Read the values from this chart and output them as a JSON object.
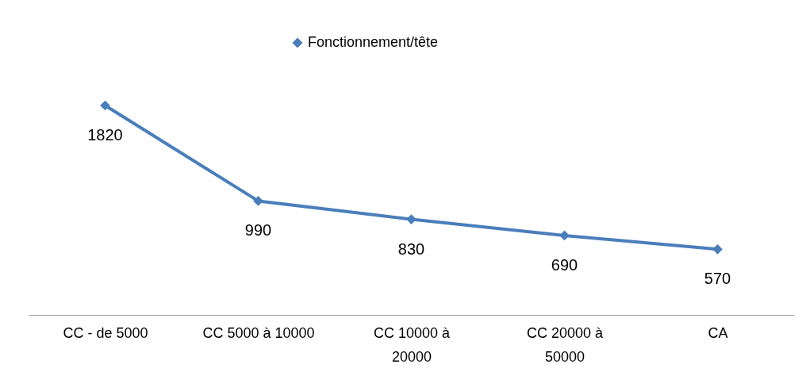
{
  "chart_data": {
    "type": "line",
    "categories": [
      "CC - de 5000",
      "CC 5000 à 10000",
      "CC 10000 à 20000",
      "CC 20000 à 50000",
      "CA"
    ],
    "series": [
      {
        "name": "Fonctionnement/tête",
        "color": "#4a7ebb",
        "values": [
          1820,
          990,
          830,
          690,
          570
        ]
      }
    ],
    "tick_labels": "x",
    "grid": false,
    "legend": "top",
    "marker": "diamond",
    "line_style": "solid",
    "data_labels": true
  }
}
